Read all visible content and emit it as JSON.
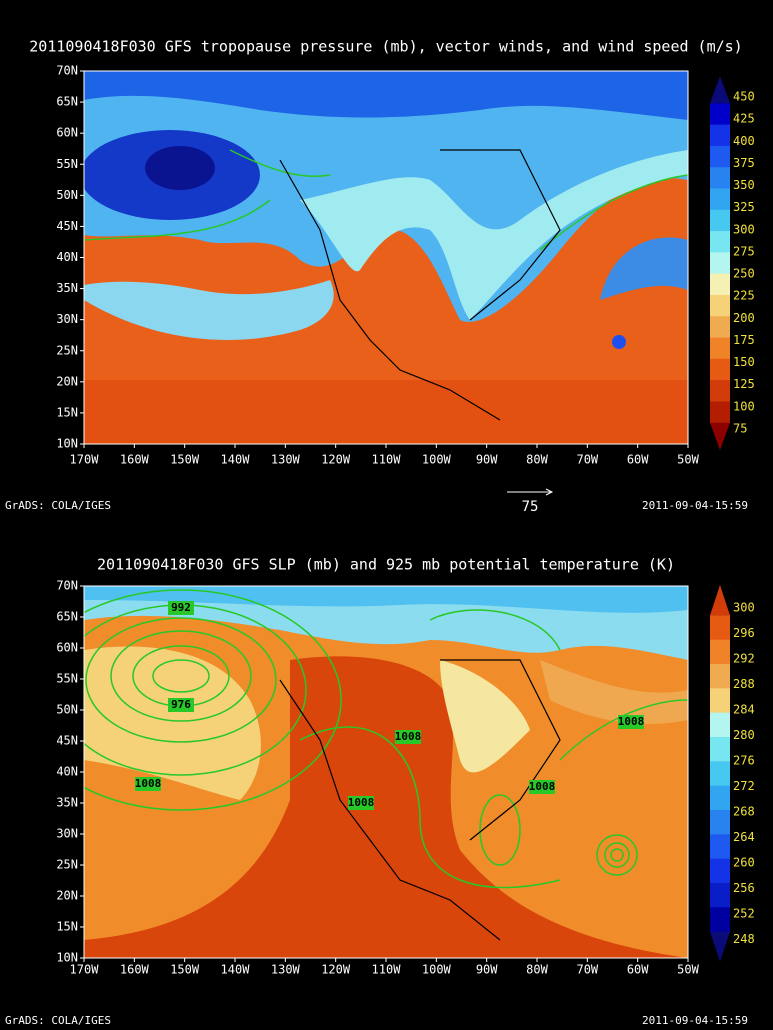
{
  "panels": [
    {
      "title": "2011090418F030 GFS tropopause pressure (mb), vector winds, and wind speed (m/s)",
      "lat_labels": [
        "70N",
        "65N",
        "60N",
        "55N",
        "50N",
        "45N",
        "40N",
        "35N",
        "30N",
        "25N",
        "20N",
        "15N",
        "10N"
      ],
      "lon_labels": [
        "170W",
        "160W",
        "150W",
        "140W",
        "130W",
        "120W",
        "110W",
        "100W",
        "90W",
        "80W",
        "70W",
        "60W",
        "50W"
      ],
      "colorbar_labels": [
        "450",
        "425",
        "400",
        "375",
        "350",
        "325",
        "300",
        "275",
        "250",
        "225",
        "200",
        "175",
        "150",
        "125",
        "100",
        "75"
      ],
      "vector_reference": "75",
      "footer_left": "GrADS: COLA/IGES",
      "footer_right": "2011-09-04-15:59"
    },
    {
      "title": "2011090418F030 GFS SLP (mb) and 925 mb potential temperature (K)",
      "lat_labels": [
        "70N",
        "65N",
        "60N",
        "55N",
        "50N",
        "45N",
        "40N",
        "35N",
        "30N",
        "25N",
        "20N",
        "15N",
        "10N"
      ],
      "lon_labels": [
        "170W",
        "160W",
        "150W",
        "140W",
        "130W",
        "120W",
        "110W",
        "100W",
        "90W",
        "80W",
        "70W",
        "60W",
        "50W"
      ],
      "colorbar_labels": [
        "300",
        "296",
        "292",
        "288",
        "284",
        "280",
        "276",
        "272",
        "268",
        "264",
        "260",
        "256",
        "252",
        "248"
      ],
      "contour_labels": [
        "992",
        "976",
        "1008",
        "1008",
        "1008",
        "1008",
        "1008"
      ],
      "footer_left": "GrADS: COLA/IGES",
      "footer_right": "2011-09-04-15:59"
    }
  ]
}
